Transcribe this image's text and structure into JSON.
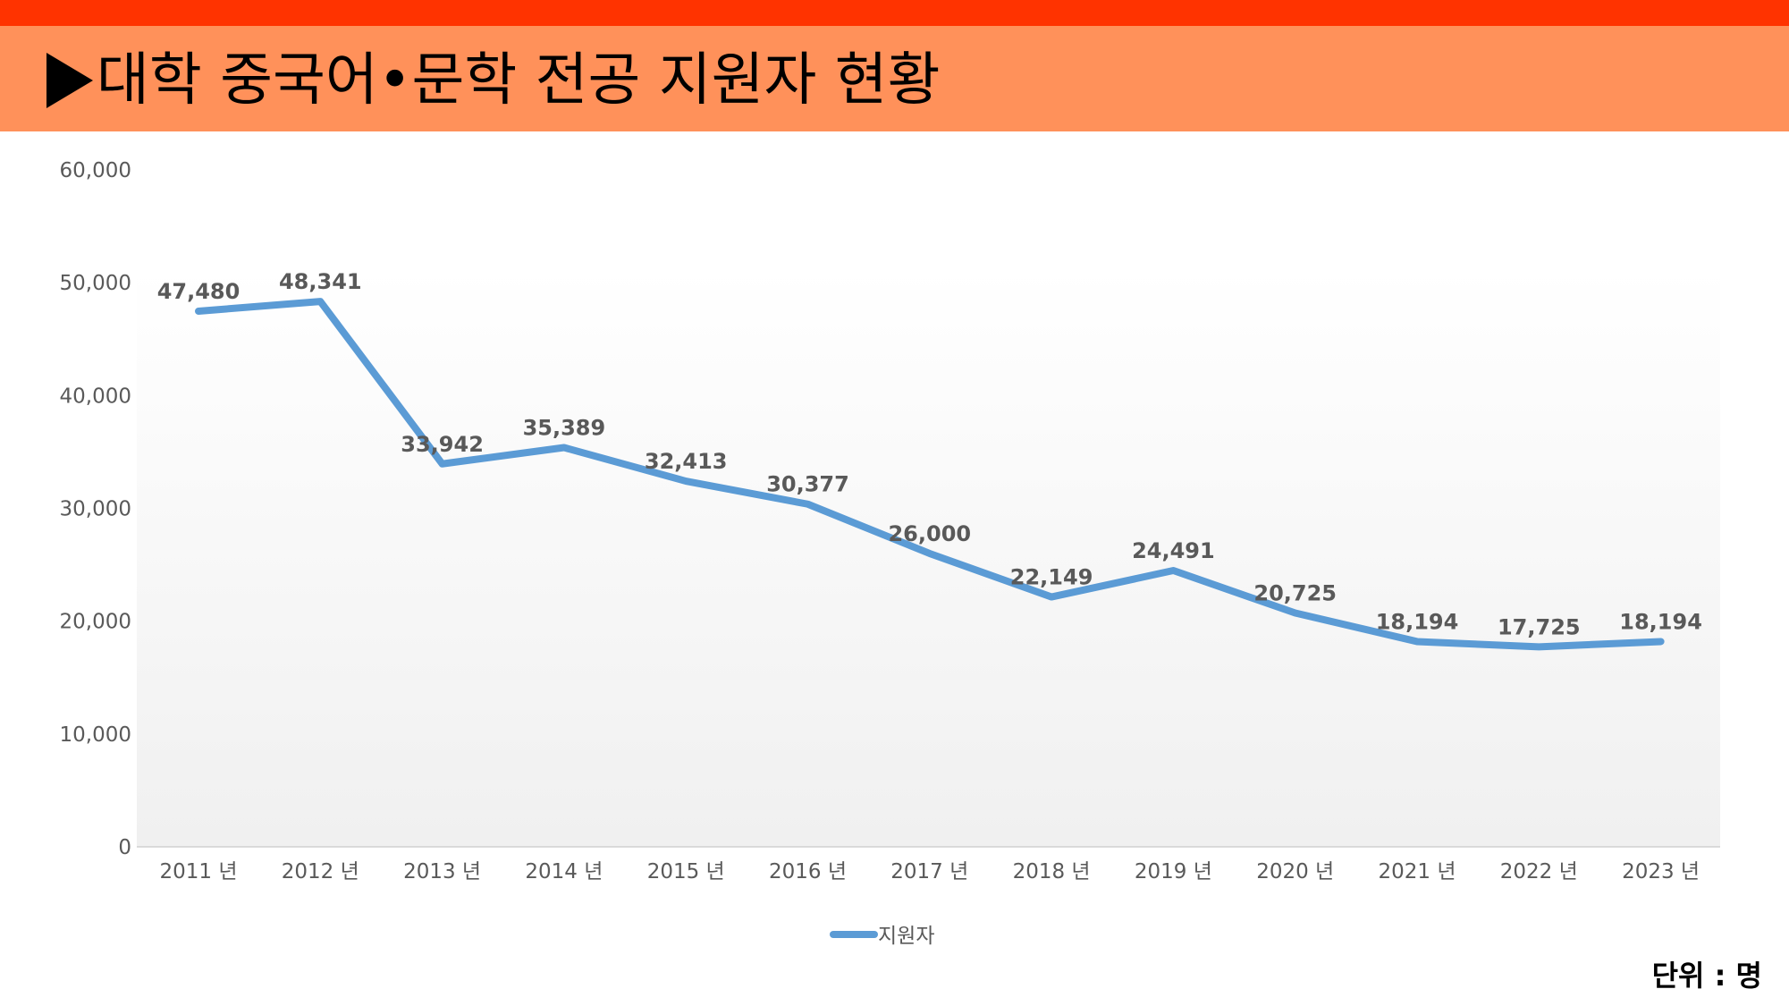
{
  "header": {
    "title": "대학 중국어•문학 전공 지원자 현황"
  },
  "unit_label": "단위 :  명",
  "colors": {
    "topbar": "#ff3300",
    "header": "#ff915a",
    "series": "#5b9bd5"
  },
  "chart_data": {
    "type": "line",
    "title": "대학 중국어•문학 전공 지원자 현황",
    "categories": [
      "2011 년",
      "2012 년",
      "2013 년",
      "2014 년",
      "2015 년",
      "2016 년",
      "2017 년",
      "2018 년",
      "2019 년",
      "2020 년",
      "2021 년",
      "2022 년",
      "2023 년"
    ],
    "series": [
      {
        "name": "지원자",
        "values": [
          47480,
          48341,
          33942,
          35389,
          32413,
          30377,
          26000,
          22149,
          24491,
          20725,
          18194,
          17725,
          18194
        ]
      }
    ],
    "data_labels": [
      "47,480",
      "48,341",
      "33,942",
      "35,389",
      "32,413",
      "30,377",
      "26,000",
      "22,149",
      "24,491",
      "20,725",
      "18,194",
      "17,725",
      "18,194"
    ],
    "yticks": [
      "0",
      "10,000",
      "20,000",
      "30,000",
      "40,000",
      "50,000",
      "60,000"
    ],
    "ylim": [
      0,
      60000
    ],
    "legend": "bottom",
    "grid": false
  }
}
